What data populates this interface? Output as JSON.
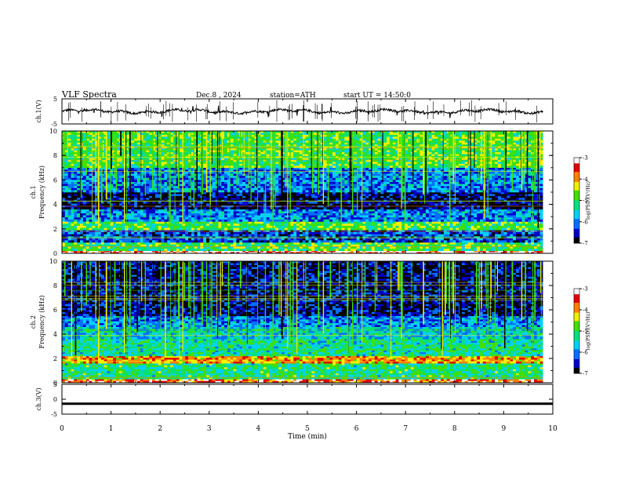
{
  "header": {
    "title": "VLF Spectra",
    "date": "Dec.8 , 2024",
    "station": "station=ATH",
    "start": "start UT =  14:50:0"
  },
  "chart_data": [
    {
      "type": "line",
      "panel": "ch1-waveform",
      "ylabel": "ch.1(V)",
      "ylim": [
        -5,
        5
      ],
      "yticks": [
        "5",
        "-5"
      ],
      "xlim": [
        0,
        9.8
      ],
      "baseline_value": 0
    },
    {
      "type": "heatmap",
      "panel": "ch1-spectrogram",
      "ylabel": "ch.1\nFrequency (kHz)",
      "ylabel_line1": "ch.1",
      "ylabel_line2": "Frequency (kHz)",
      "ylim": [
        0,
        10
      ],
      "yticks": [
        "0",
        "2",
        "4",
        "6",
        "8",
        "10"
      ],
      "xlim": [
        0,
        9.8
      ],
      "colorbar": {
        "label": "log(PSD)(V²/Hz)",
        "range": [
          -7,
          -3
        ],
        "ticks": [
          "-3",
          "-4",
          "-5",
          "-6",
          "-7"
        ]
      },
      "bands": [
        {
          "freq_khz": [
            0,
            0.2
          ],
          "level": -3.2
        },
        {
          "freq_khz": [
            0.2,
            0.9
          ],
          "level": -5.0
        },
        {
          "freq_khz": [
            0.9,
            1.9
          ],
          "level": -6.3
        },
        {
          "freq_khz": [
            1.9,
            2.6
          ],
          "level": -4.9
        },
        {
          "freq_khz": [
            2.6,
            3.6
          ],
          "level": -6.0
        },
        {
          "freq_khz": [
            3.6,
            5.0
          ],
          "level": -6.8
        },
        {
          "freq_khz": [
            5.0,
            7.0
          ],
          "level": -6.0
        },
        {
          "freq_khz": [
            7.0,
            10.0
          ],
          "level": -4.9
        }
      ]
    },
    {
      "type": "heatmap",
      "panel": "ch2-spectrogram",
      "ylabel_line1": "ch.2",
      "ylabel_line2": "Frequency (kHz)",
      "ylim": [
        0,
        10
      ],
      "yticks": [
        "0",
        "2",
        "4",
        "6",
        "8",
        "10"
      ],
      "xlim": [
        0,
        9.8
      ],
      "colorbar": {
        "label": "log(PSD)(V²/Hz)",
        "range": [
          -7,
          -3
        ],
        "ticks": [
          "-3",
          "-4",
          "-5",
          "-6",
          "-7"
        ]
      },
      "bands": [
        {
          "freq_khz": [
            0,
            0.3
          ],
          "level": -3.6
        },
        {
          "freq_khz": [
            0.3,
            1.6
          ],
          "level": -5.2
        },
        {
          "freq_khz": [
            1.6,
            2.2
          ],
          "level": -4.0
        },
        {
          "freq_khz": [
            2.2,
            3.6
          ],
          "level": -5.3
        },
        {
          "freq_khz": [
            3.6,
            4.6
          ],
          "level": -5.6
        },
        {
          "freq_khz": [
            4.6,
            5.5
          ],
          "level": -6.0
        },
        {
          "freq_khz": [
            5.5,
            10.0
          ],
          "level": -6.7
        }
      ]
    },
    {
      "type": "line",
      "panel": "ch3-waveform",
      "ylabel": "ch.3(V)",
      "ylim": [
        -5,
        5
      ],
      "yticks": [
        "5",
        "0",
        "-5"
      ],
      "xlim": [
        0,
        10
      ],
      "xticks": [
        "0",
        "1",
        "2",
        "3",
        "4",
        "5",
        "6",
        "7",
        "8",
        "9",
        "10"
      ],
      "xlabel": "Time (min)",
      "baseline_value": -1.5
    }
  ],
  "colors": {
    "axis": "#000000",
    "colormap": [
      "#000000",
      "#0000c8",
      "#0070ff",
      "#00d0ff",
      "#00e080",
      "#40e000",
      "#f0f000",
      "#ff8000",
      "#e00000",
      "#ffffff"
    ]
  }
}
